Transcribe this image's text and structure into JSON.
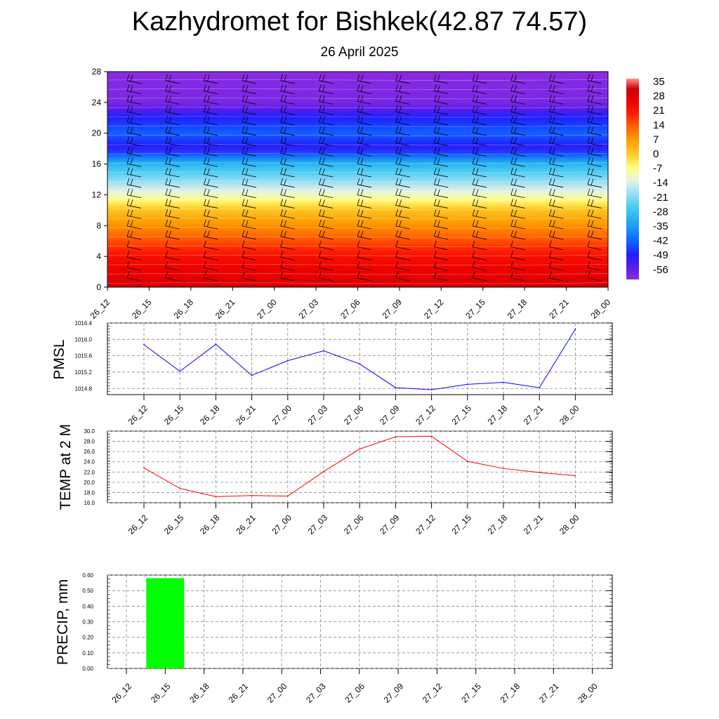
{
  "title": "Kazhydromet for Bishkek(42.87 74.57)",
  "subtitle": "26 April 2025",
  "time_labels": [
    "26_12",
    "26_15",
    "26_18",
    "26_21",
    "27_00",
    "27_03",
    "27_06",
    "27_09",
    "27_12",
    "27_15",
    "27_18",
    "27_21",
    "28_00"
  ],
  "chart_data": [
    {
      "type": "heatmap",
      "title": "Kazhydromet for Bishkek(42.87 74.57)",
      "subtitle": "26 April 2025",
      "x": [
        "26_12",
        "26_15",
        "26_18",
        "26_21",
        "27_00",
        "27_03",
        "27_06",
        "27_09",
        "27_12",
        "27_15",
        "27_18",
        "27_21",
        "28_00"
      ],
      "y_ticks": [
        0,
        4,
        8,
        12,
        16,
        20,
        24,
        28
      ],
      "ylim": [
        0,
        28
      ],
      "colorbar_labels": [
        "35",
        "28",
        "21",
        "14",
        "7",
        "0",
        "-7",
        "-14",
        "-21",
        "-28",
        "-35",
        "-42",
        "-49",
        "-56"
      ],
      "temperature_profile": [
        {
          "height": 0,
          "value": 28
        },
        {
          "height": 4,
          "value": 21
        },
        {
          "height": 7,
          "value": 10
        },
        {
          "height": 10,
          "value": 0
        },
        {
          "height": 12,
          "value": -12
        },
        {
          "height": 14,
          "value": -22
        },
        {
          "height": 16,
          "value": -32
        },
        {
          "height": 18,
          "value": -52
        },
        {
          "height": 20,
          "value": -44
        },
        {
          "height": 22,
          "value": -50
        },
        {
          "height": 24,
          "value": -60
        },
        {
          "height": 28,
          "value": -62
        }
      ],
      "overlay": "wind barbs"
    },
    {
      "type": "line",
      "ylabel": "PMSL",
      "x": [
        "26_12",
        "26_15",
        "26_18",
        "26_21",
        "27_00",
        "27_03",
        "27_06",
        "27_09",
        "27_12",
        "27_15",
        "27_18",
        "27_21",
        "28_00"
      ],
      "y_ticks": [
        "1014.8",
        "1015.2",
        "1015.6",
        "1016.0",
        "1016.4"
      ],
      "ylim": [
        1014.65,
        1016.4
      ],
      "series": [
        {
          "values": [
            1015.87,
            1015.22,
            1015.88,
            1015.12,
            1015.48,
            1015.72,
            1015.4,
            1014.82,
            1014.77,
            1014.9,
            1014.95,
            1014.82,
            1016.25
          ]
        }
      ],
      "color": "#0000ff"
    },
    {
      "type": "line",
      "ylabel": "TEMP at 2 M",
      "x": [
        "26_12",
        "26_15",
        "26_18",
        "26_21",
        "27_00",
        "27_03",
        "27_06",
        "27_09",
        "27_12",
        "27_15",
        "27_18",
        "27_21",
        "28_00"
      ],
      "y_ticks": [
        "16.0",
        "18.0",
        "20.0",
        "22.0",
        "24.0",
        "26.0",
        "28.0",
        "30.0"
      ],
      "ylim": [
        16,
        30
      ],
      "series": [
        {
          "values": [
            22.8,
            18.8,
            17.2,
            17.4,
            17.3,
            22.1,
            26.5,
            28.9,
            29.0,
            24.1,
            22.7,
            21.9,
            21.3
          ]
        }
      ],
      "color": "#ff0000"
    },
    {
      "type": "bar",
      "ylabel": "PRECIP, mm",
      "x": [
        "26_12",
        "26_15",
        "26_18",
        "26_21",
        "27_00",
        "27_03",
        "27_06",
        "27_09",
        "27_12",
        "27_15",
        "27_18",
        "27_21",
        "28_00"
      ],
      "y_ticks": [
        "0.00",
        "0.10",
        "0.20",
        "0.30",
        "0.40",
        "0.50",
        "0.60"
      ],
      "ylim": [
        0,
        0.6
      ],
      "values": [
        0,
        0.58,
        0,
        0,
        0,
        0,
        0,
        0,
        0,
        0,
        0,
        0,
        0
      ],
      "color": "#00ff00"
    }
  ]
}
